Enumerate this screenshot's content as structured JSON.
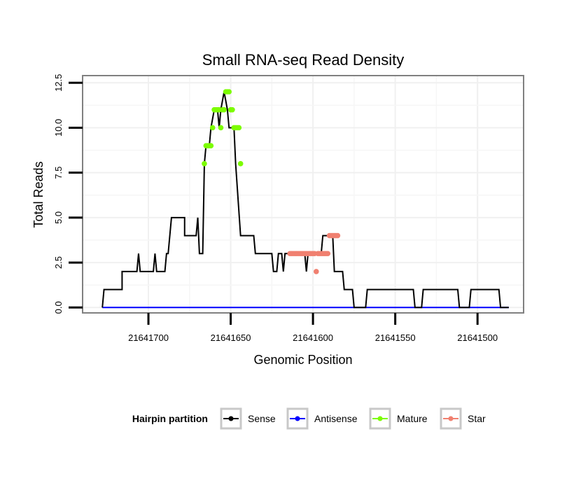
{
  "chart_data": {
    "type": "line",
    "title": "Small RNA-seq Read Density",
    "xlabel": "Genomic Position",
    "ylabel": "Total Reads",
    "x_reversed": true,
    "xlim": [
      21641740,
      21641472
    ],
    "ylim": [
      -0.3,
      12.9
    ],
    "x_ticks": [
      21641700,
      21641650,
      21641600,
      21641550,
      21641500
    ],
    "x_tick_labels": [
      "21641700",
      "21641650",
      "21641600",
      "21641550",
      "21641500"
    ],
    "y_ticks": [
      0,
      2.5,
      5,
      7.5,
      10,
      12.5
    ],
    "y_tick_labels": [
      "0.0",
      "2.5",
      "5.0",
      "7.5",
      "10.0",
      "12.5"
    ],
    "grid": true,
    "series": [
      {
        "name": "Sense",
        "color": "#000000",
        "points": [
          [
            21641728,
            0
          ],
          [
            21641727,
            1
          ],
          [
            21641716,
            1
          ],
          [
            21641716,
            2
          ],
          [
            21641707,
            2
          ],
          [
            21641706,
            3
          ],
          [
            21641705,
            2
          ],
          [
            21641697,
            2
          ],
          [
            21641696,
            3
          ],
          [
            21641695,
            2
          ],
          [
            21641690,
            2
          ],
          [
            21641689,
            3
          ],
          [
            21641688,
            3
          ],
          [
            21641686,
            5
          ],
          [
            21641678,
            5
          ],
          [
            21641678,
            4
          ],
          [
            21641671,
            4
          ],
          [
            21641670,
            5
          ],
          [
            21641669,
            3
          ],
          [
            21641667,
            3
          ],
          [
            21641666,
            8
          ],
          [
            21641665,
            9
          ],
          [
            21641663,
            9
          ],
          [
            21641662,
            10
          ],
          [
            21641660,
            11
          ],
          [
            21641658,
            11
          ],
          [
            21641657,
            10
          ],
          [
            21641656,
            11
          ],
          [
            21641654,
            12
          ],
          [
            21641652,
            11
          ],
          [
            21641651,
            10
          ],
          [
            21641648,
            10
          ],
          [
            21641647,
            8
          ],
          [
            21641644,
            4
          ],
          [
            21641636,
            4
          ],
          [
            21641635,
            3
          ],
          [
            21641625,
            3
          ],
          [
            21641624,
            2
          ],
          [
            21641622,
            2
          ],
          [
            21641621,
            3
          ],
          [
            21641619,
            3
          ],
          [
            21641618,
            2
          ],
          [
            21641617,
            3
          ],
          [
            21641605,
            3
          ],
          [
            21641604,
            2
          ],
          [
            21641603,
            3
          ],
          [
            21641595,
            3
          ],
          [
            21641594,
            4
          ],
          [
            21641588,
            4
          ],
          [
            21641587,
            2
          ],
          [
            21641582,
            2
          ],
          [
            21641581,
            1
          ],
          [
            21641576,
            1
          ],
          [
            21641575,
            0
          ],
          [
            21641568,
            0
          ],
          [
            21641567,
            1
          ],
          [
            21641539,
            1
          ],
          [
            21641538,
            0
          ],
          [
            21641534,
            0
          ],
          [
            21641533,
            1
          ],
          [
            21641512,
            1
          ],
          [
            21641511,
            0
          ],
          [
            21641505,
            0
          ],
          [
            21641504,
            1
          ],
          [
            21641487,
            1
          ],
          [
            21641486,
            0
          ],
          [
            21641481,
            0
          ]
        ]
      },
      {
        "name": "Antisense",
        "color": "#0000ff",
        "points": [
          [
            21641728,
            0
          ],
          [
            21641481,
            0
          ]
        ]
      },
      {
        "name": "Mature",
        "color": "#7cfc00",
        "points": [
          [
            21641666,
            8
          ],
          [
            21641665,
            9
          ],
          [
            21641664,
            9
          ],
          [
            21641663,
            9
          ],
          [
            21641662,
            9
          ],
          [
            21641661,
            10
          ],
          [
            21641660,
            11
          ],
          [
            21641659,
            11
          ],
          [
            21641658,
            11
          ],
          [
            21641657,
            11
          ],
          [
            21641656,
            10
          ],
          [
            21641655,
            11
          ],
          [
            21641654,
            11
          ],
          [
            21641653,
            12
          ],
          [
            21641652,
            12
          ],
          [
            21641651,
            12
          ],
          [
            21641650,
            11
          ],
          [
            21641649,
            11
          ],
          [
            21641648,
            10
          ],
          [
            21641647,
            10
          ],
          [
            21641646,
            10
          ],
          [
            21641645,
            10
          ],
          [
            21641644,
            8
          ]
        ]
      },
      {
        "name": "Star",
        "color": "#f08070",
        "points": [
          [
            21641614,
            3
          ],
          [
            21641613,
            3
          ],
          [
            21641612,
            3
          ],
          [
            21641611,
            3
          ],
          [
            21641610,
            3
          ],
          [
            21641609,
            3
          ],
          [
            21641608,
            3
          ],
          [
            21641607,
            3
          ],
          [
            21641606,
            3
          ],
          [
            21641605,
            3
          ],
          [
            21641604,
            3
          ],
          [
            21641603,
            3
          ],
          [
            21641602,
            3
          ],
          [
            21641601,
            3
          ],
          [
            21641600,
            3
          ],
          [
            21641599,
            3
          ],
          [
            21641598,
            2
          ],
          [
            21641597,
            3
          ],
          [
            21641596,
            3
          ],
          [
            21641595,
            3
          ],
          [
            21641594,
            3
          ],
          [
            21641593,
            3
          ],
          [
            21641592,
            3
          ],
          [
            21641591,
            3
          ],
          [
            21641590,
            4
          ],
          [
            21641589,
            4
          ],
          [
            21641588,
            4
          ],
          [
            21641587,
            4
          ],
          [
            21641586,
            4
          ],
          [
            21641585,
            4
          ]
        ]
      }
    ],
    "legend": {
      "title": "Hairpin partition",
      "placement": "bottom",
      "entries": [
        {
          "name": "Sense",
          "color": "#000000"
        },
        {
          "name": "Antisense",
          "color": "#0000ff"
        },
        {
          "name": "Mature",
          "color": "#7cfc00"
        },
        {
          "name": "Star",
          "color": "#f08070"
        }
      ]
    }
  }
}
